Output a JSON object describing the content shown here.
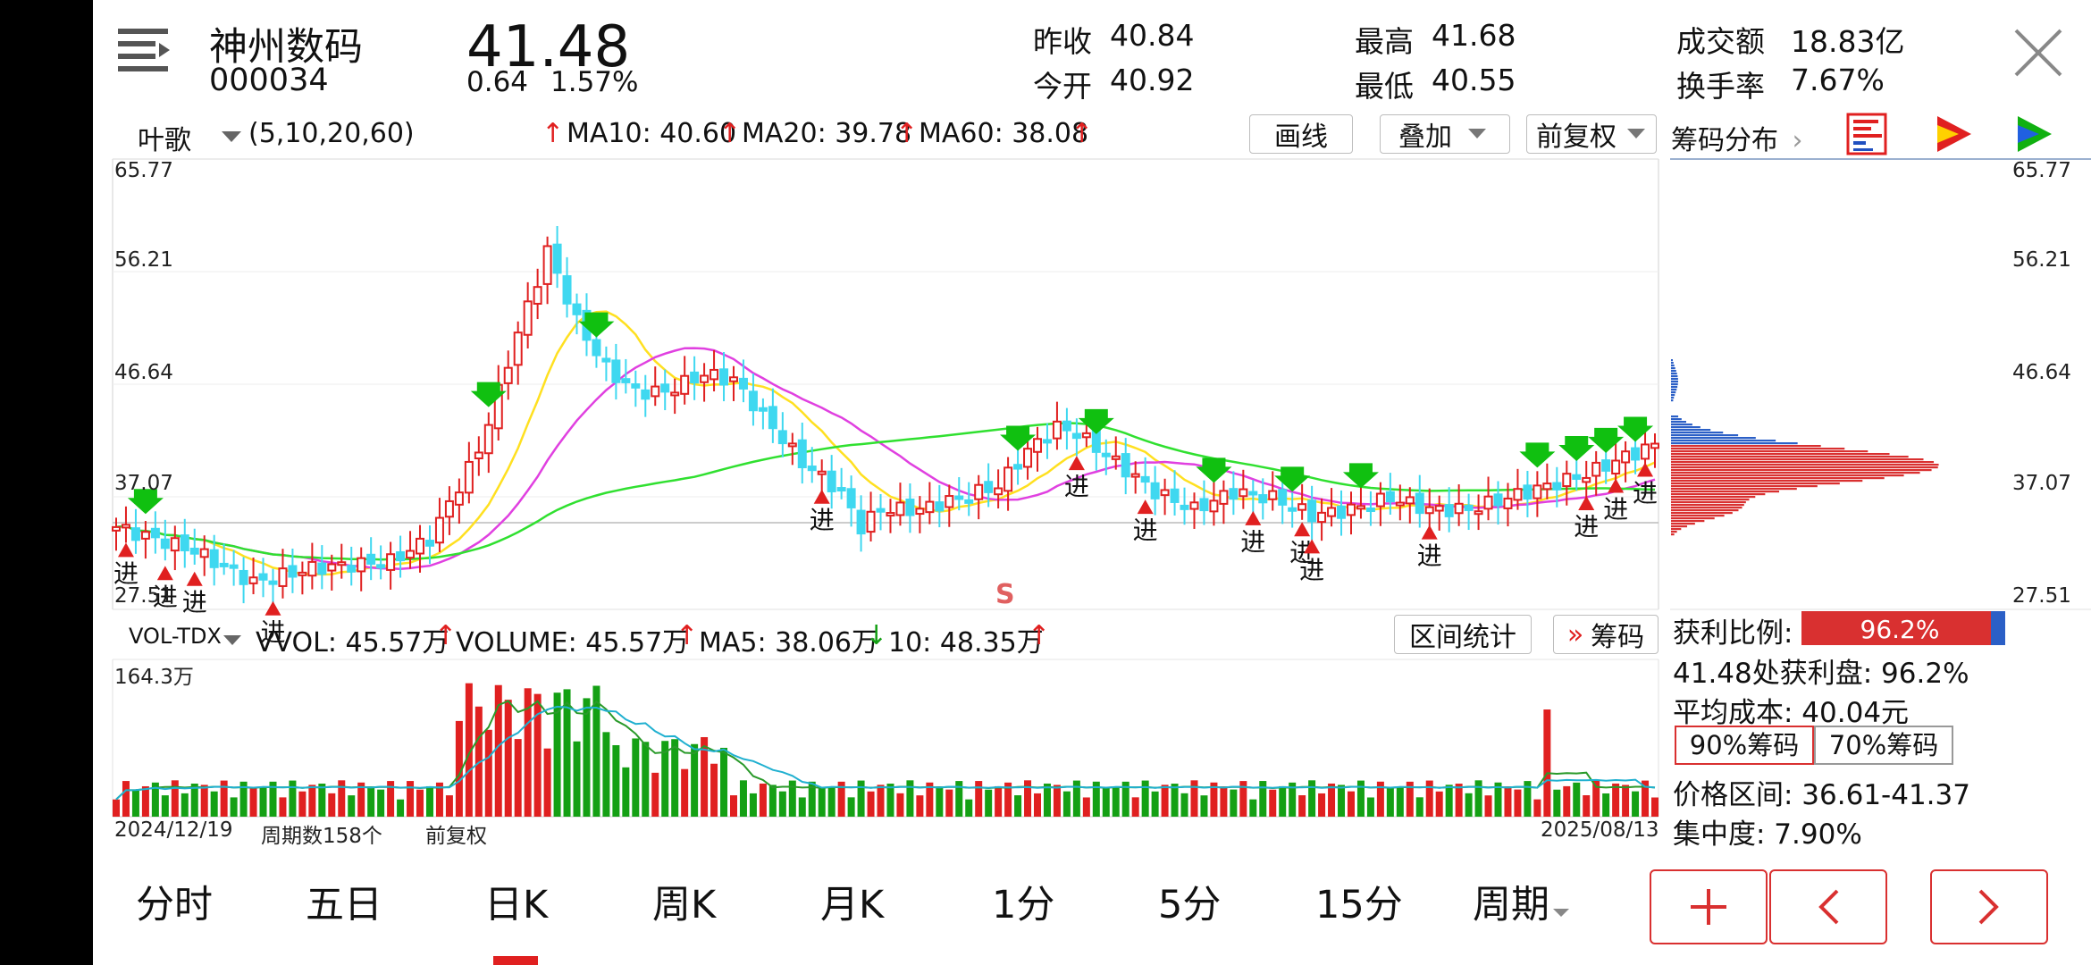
{
  "header": {
    "stock_name": "神州数码",
    "stock_code": "000034",
    "last_price": "41.48",
    "change": "0.64",
    "change_pct": "1.57%",
    "stats": [
      {
        "label": "昨收",
        "value": "40.84"
      },
      {
        "label": "今开",
        "value": "40.92"
      },
      {
        "label": "最高",
        "value": "41.68"
      },
      {
        "label": "最低",
        "value": "40.55"
      },
      {
        "label": "成交额",
        "value": "18.83亿"
      },
      {
        "label": "换手率",
        "value": "7.67%"
      }
    ]
  },
  "toolbar": {
    "indicator": "叶歌",
    "params": "(5,10,20,60)",
    "ma10": "MA10: 40.60",
    "ma20": "MA20: 39.78",
    "ma60": "MA60: 38.08",
    "draw_line": "画线",
    "overlay": "叠加",
    "adjust": "前复权",
    "chip_dist": "筹码分布"
  },
  "price_axis": [
    "65.77",
    "56.21",
    "46.64",
    "37.07",
    "27.51"
  ],
  "signals": {
    "enter": "进",
    "sell": "S"
  },
  "volume_bar": {
    "indicator": "VOL-TDX",
    "vvol": "VVOL: 45.57万",
    "volume": "VOLUME: 45.57万",
    "ma5": "MA5: 38.06万",
    "ma10": "10: 48.35万",
    "range_stats": "区间统计",
    "chips": "筹码",
    "max_label": "164.3万"
  },
  "footer_info": {
    "start_date": "2024/12/19",
    "period_count": "周期数158个",
    "adjust_mode": "前复权",
    "end_date": "2025/08/13"
  },
  "chip_panel": {
    "profit_ratio_label": "获利比例:",
    "profit_ratio_value": "96.2%",
    "profit_ratio": 0.962,
    "profit_line": "41.48处获利盘: 96.2%",
    "avg_cost": "平均成本: 40.04元",
    "tab_90": "90%筹码",
    "tab_70": "70%筹码",
    "price_range": "价格区间: 36.61-41.37",
    "concentration": "集中度: 7.90%"
  },
  "bottom_tabs": [
    "分时",
    "五日",
    "日K",
    "周K",
    "月K",
    "1分",
    "5分",
    "15分",
    "周期"
  ],
  "active_tab": "日K",
  "colors": {
    "up": "#e02020",
    "down_cyan": "#3fd8f0",
    "down_green": "#14a014",
    "ma5": "#ffe020",
    "ma10": "#e040e0",
    "ma20": "#30e030"
  }
}
